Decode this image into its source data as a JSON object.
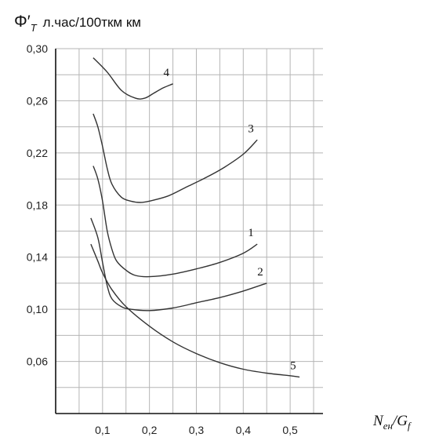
{
  "chart_data": {
    "type": "line",
    "ylabel_symbol": "Φ′",
    "ylabel_sub": "T",
    "ylabel": "л.час/100ткм км",
    "xlabel_main": "N",
    "xlabel_sub": "ен",
    "xlabel_denom": "/G",
    "xlabel_denom_sub": "f",
    "xlim": [
      0,
      0.57
    ],
    "ylim": [
      0.02,
      0.3
    ],
    "grid": true,
    "x_tick_labels": [
      "0,1",
      "0,2",
      "0,3",
      "0,4",
      "0,5"
    ],
    "y_tick_labels": [
      "0,30",
      "0,26",
      "0,22",
      "0,18",
      "0,14",
      "0,10",
      "0,06"
    ],
    "series": [
      {
        "name": "4",
        "x": [
          0.08,
          0.11,
          0.14,
          0.17,
          0.19,
          0.21,
          0.23,
          0.25
        ],
        "y": [
          0.293,
          0.282,
          0.268,
          0.262,
          0.262,
          0.266,
          0.27,
          0.273
        ]
      },
      {
        "name": "3",
        "x": [
          0.08,
          0.09,
          0.1,
          0.11,
          0.12,
          0.14,
          0.16,
          0.18,
          0.2,
          0.24,
          0.28,
          0.32,
          0.36,
          0.4,
          0.43
        ],
        "y": [
          0.25,
          0.24,
          0.225,
          0.208,
          0.196,
          0.186,
          0.183,
          0.182,
          0.183,
          0.187,
          0.194,
          0.201,
          0.209,
          0.219,
          0.23
        ]
      },
      {
        "name": "1",
        "x": [
          0.08,
          0.09,
          0.1,
          0.11,
          0.12,
          0.13,
          0.15,
          0.17,
          0.2,
          0.25,
          0.3,
          0.35,
          0.4,
          0.43
        ],
        "y": [
          0.21,
          0.2,
          0.183,
          0.16,
          0.146,
          0.137,
          0.13,
          0.126,
          0.125,
          0.127,
          0.131,
          0.136,
          0.143,
          0.15
        ]
      },
      {
        "name": "2",
        "x": [
          0.075,
          0.09,
          0.1,
          0.11,
          0.12,
          0.14,
          0.16,
          0.2,
          0.25,
          0.3,
          0.35,
          0.4,
          0.45
        ],
        "y": [
          0.17,
          0.155,
          0.136,
          0.118,
          0.108,
          0.102,
          0.1,
          0.099,
          0.101,
          0.105,
          0.109,
          0.114,
          0.12
        ]
      },
      {
        "name": "5",
        "x": [
          0.075,
          0.09,
          0.1,
          0.12,
          0.15,
          0.2,
          0.25,
          0.3,
          0.35,
          0.4,
          0.45,
          0.5,
          0.52
        ],
        "y": [
          0.15,
          0.137,
          0.128,
          0.115,
          0.102,
          0.087,
          0.075,
          0.066,
          0.059,
          0.054,
          0.051,
          0.049,
          0.048
        ]
      }
    ]
  }
}
